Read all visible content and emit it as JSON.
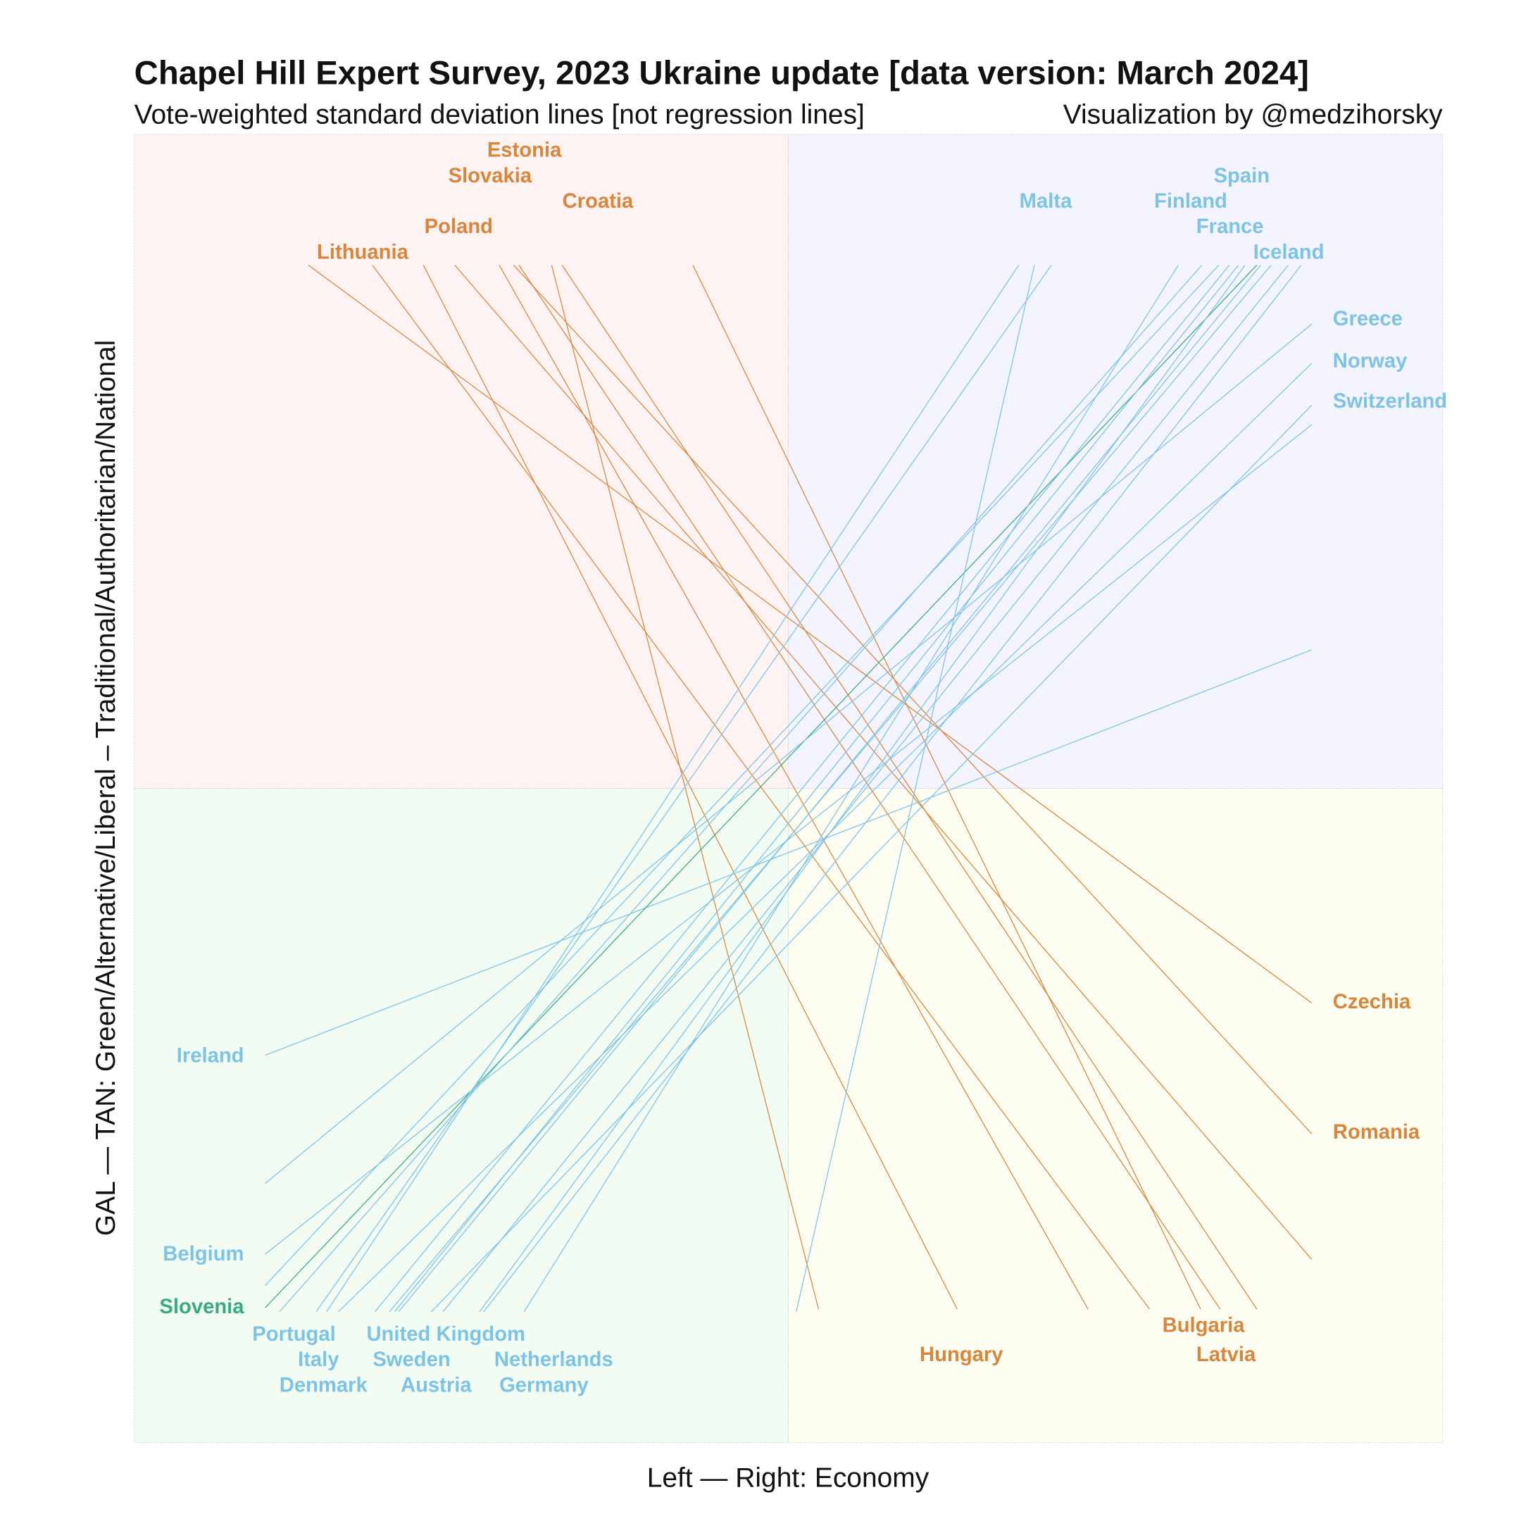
{
  "title": "Chapel Hill Expert Survey, 2023 Ukraine update [data version: March 2024]",
  "subtitle": "Vote-weighted standard deviation lines [not regression lines]",
  "credit": "Visualization by @medzihorsky",
  "chart_data": {
    "type": "line",
    "xlabel": "Left — Right: Economy",
    "ylabel": "GAL — TAN: Green/Alternative/Liberal – Traditional/Authoritarian/National",
    "xlim": [
      0,
      10
    ],
    "ylim": [
      0,
      10
    ],
    "grid": false,
    "quadrant_split": [
      5,
      5
    ],
    "colors": {
      "negative_slope": "#d9853b",
      "positive_slope": "#7cc3e6",
      "highlight": "#3aaa80",
      "quadrant_top_left": "#fdf3f2",
      "quadrant_top_right": "#f3f4fd",
      "quadrant_bottom_left": "#f2fcf3",
      "quadrant_bottom_right": "#fdfdf2"
    },
    "series": [
      {
        "name": "Czechia",
        "group": "negative_slope",
        "x": [
          1.33,
          9.0
        ],
        "y": [
          9.0,
          3.36
        ]
      },
      {
        "name": "Lithuania",
        "group": "negative_slope",
        "x": [
          1.82,
          7.76
        ],
        "y": [
          9.0,
          1.02
        ]
      },
      {
        "name": "Hungary",
        "group": "negative_slope",
        "x": [
          2.21,
          6.29
        ],
        "y": [
          9.0,
          1.02
        ]
      },
      {
        "name": "Poland",
        "group": "negative_slope",
        "x": [
          2.45,
          9.0
        ],
        "y": [
          9.0,
          1.4
        ]
      },
      {
        "name": "Slovakia",
        "group": "negative_slope",
        "x": [
          2.79,
          7.29
        ],
        "y": [
          9.0,
          1.02
        ]
      },
      {
        "name": "Romania",
        "group": "negative_slope",
        "x": [
          2.9,
          9.0
        ],
        "y": [
          9.0,
          2.36
        ]
      },
      {
        "name": "Estonia",
        "group": "negative_slope",
        "x": [
          2.94,
          8.3
        ],
        "y": [
          9.0,
          1.02
        ]
      },
      {
        "name": "Croatia",
        "group": "negative_slope",
        "x": [
          3.19,
          5.23
        ],
        "y": [
          9.0,
          1.02
        ]
      },
      {
        "name": "Latvia",
        "group": "negative_slope",
        "x": [
          3.27,
          8.58
        ],
        "y": [
          9.0,
          1.02
        ]
      },
      {
        "name": "Bulgaria",
        "group": "negative_slope",
        "x": [
          4.27,
          8.15
        ],
        "y": [
          9.0,
          1.02
        ]
      },
      {
        "name": "Ireland",
        "group": "positive_slope",
        "x": [
          1.0,
          9.0
        ],
        "y": [
          2.96,
          6.06
        ]
      },
      {
        "name": "Belgium",
        "group": "positive_slope",
        "x": [
          1.0,
          9.0
        ],
        "y": [
          1.44,
          7.78
        ]
      },
      {
        "name": "Slovenia",
        "group": "highlight",
        "x": [
          1.0,
          8.58
        ],
        "y": [
          1.03,
          9.0
        ]
      },
      {
        "name": "Portugal",
        "group": "positive_slope",
        "x": [
          1.11,
          8.16
        ],
        "y": [
          1.0,
          9.0
        ]
      },
      {
        "name": "Denmark",
        "group": "positive_slope",
        "x": [
          1.39,
          7.01
        ],
        "y": [
          1.0,
          9.0
        ]
      },
      {
        "name": "Italy",
        "group": "positive_slope",
        "x": [
          1.47,
          6.76
        ],
        "y": [
          1.0,
          9.0
        ]
      },
      {
        "name": "United Kingdom",
        "group": "positive_slope",
        "x": [
          1.84,
          8.37
        ],
        "y": [
          1.0,
          9.0
        ]
      },
      {
        "name": "Sweden",
        "group": "positive_slope",
        "x": [
          1.95,
          8.69
        ],
        "y": [
          1.0,
          9.0
        ]
      },
      {
        "name": "Austria",
        "group": "positive_slope",
        "x": [
          1.99,
          8.44
        ],
        "y": [
          1.0,
          9.0
        ]
      },
      {
        "name": "Netherlands",
        "group": "positive_slope",
        "x": [
          2.02,
          8.61
        ],
        "y": [
          1.0,
          9.0
        ]
      },
      {
        "name": "Germany",
        "group": "positive_slope",
        "x": [
          2.36,
          8.82
        ],
        "y": [
          1.0,
          9.0
        ]
      },
      {
        "name": "Malta",
        "group": "positive_slope",
        "x": [
          5.06,
          6.88
        ],
        "y": [
          1.0,
          9.0
        ]
      },
      {
        "name": "Spain",
        "group": "positive_slope",
        "x": [
          1.0,
          8.29
        ],
        "y": [
          1.2,
          9.0
        ]
      },
      {
        "name": "Finland",
        "group": "positive_slope",
        "x": [
          2.98,
          7.98
        ],
        "y": [
          1.0,
          9.0
        ]
      },
      {
        "name": "France",
        "group": "positive_slope",
        "x": [
          2.64,
          8.49
        ],
        "y": [
          1.0,
          9.0
        ]
      },
      {
        "name": "Iceland",
        "group": "positive_slope",
        "x": [
          2.67,
          8.92
        ],
        "y": [
          1.0,
          9.0
        ]
      },
      {
        "name": "Greece",
        "group": "positive_slope",
        "x": [
          1.0,
          9.0
        ],
        "y": [
          1.98,
          8.55
        ]
      },
      {
        "name": "Norway",
        "group": "positive_slope",
        "x": [
          1.56,
          9.0
        ],
        "y": [
          1.0,
          8.25
        ]
      },
      {
        "name": "Switzerland",
        "group": "positive_slope",
        "x": [
          2.27,
          9.0
        ],
        "y": [
          1.0,
          7.93
        ]
      }
    ]
  }
}
